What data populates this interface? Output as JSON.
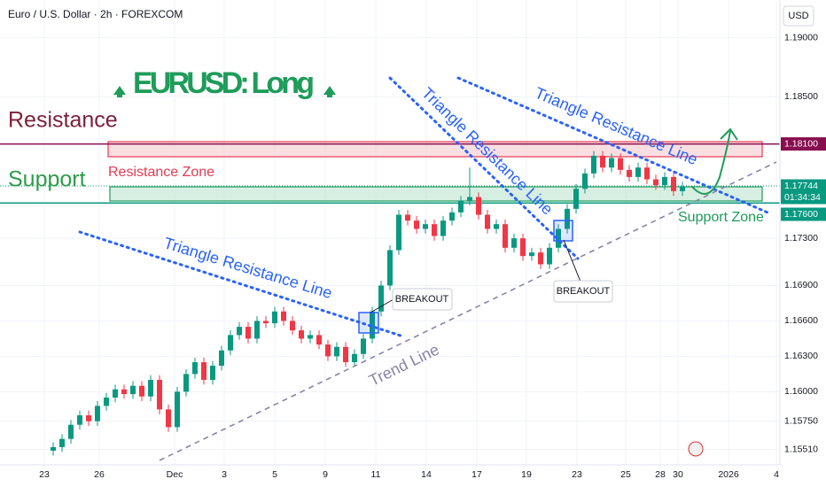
{
  "chart_data": {
    "type": "candlestick",
    "title": "Euro / U.S. Dollar · 2h · FOREXCOM",
    "currency": "USD",
    "headline": "EURUSD: Long",
    "annotations": {
      "resistance": "Resistance",
      "support": "Support",
      "resistance_zone": "Resistance Zone",
      "support_zone": "Support Zone",
      "triangle_lines": [
        "Triangle Resistance Line",
        "Triangle Resistance Line",
        "Triangle Resistance Line"
      ],
      "trend_line": "Trend Line",
      "breakouts": [
        "BREAKOUT",
        "BREAKOUT"
      ]
    },
    "up_color": "#089981",
    "down_color": "#f23645",
    "xlim": [
      -6,
      82
    ],
    "ylim": [
      1.1538,
      1.1932
    ],
    "xticks": [
      {
        "value": -1,
        "label": "23"
      },
      {
        "value": 5.2,
        "label": "26"
      },
      {
        "value": 13.7,
        "label": "Dec"
      },
      {
        "value": 19.3,
        "label": "3"
      },
      {
        "value": 25,
        "label": "5"
      },
      {
        "value": 30.7,
        "label": "9"
      },
      {
        "value": 36.4,
        "label": "11"
      },
      {
        "value": 42.1,
        "label": "14"
      },
      {
        "value": 47.8,
        "label": "17"
      },
      {
        "value": 53.4,
        "label": "19"
      },
      {
        "value": 59.1,
        "label": "23"
      },
      {
        "value": 64.6,
        "label": "25"
      },
      {
        "value": 68.5,
        "label": "28"
      },
      {
        "value": 70.5,
        "label": "30"
      },
      {
        "value": 76.2,
        "label": "2026"
      },
      {
        "value": 81.6,
        "label": "4"
      }
    ],
    "yticks": [
      {
        "value": 1.19,
        "label": "1.19000"
      },
      {
        "value": 1.185,
        "label": "1.18500"
      },
      {
        "value": 1.173,
        "label": "1.17300"
      },
      {
        "value": 1.169,
        "label": "1.16900"
      },
      {
        "value": 1.166,
        "label": "1.16600"
      },
      {
        "value": 1.163,
        "label": "1.16300"
      },
      {
        "value": 1.16,
        "label": "1.16000"
      },
      {
        "value": 1.1575,
        "label": "1.15750"
      },
      {
        "value": 1.1551,
        "label": "1.15510"
      }
    ],
    "price_labels": [
      {
        "value": 1.181,
        "label": "1.18100",
        "color": "#880e4f"
      },
      {
        "value": 1.17744,
        "label": "1.17744",
        "color": "#089981"
      },
      {
        "value": 1.176,
        "label": "1.17600",
        "color": "#089981"
      }
    ],
    "countdown": "01:34:34",
    "grid": true,
    "open": [
      1.155,
      1.1553,
      1.156,
      1.1572,
      1.158,
      1.1575,
      1.1588,
      1.1595,
      1.1602,
      1.1598,
      1.1605,
      1.1596,
      1.161,
      1.1585,
      1.157,
      1.16,
      1.1615,
      1.1625,
      1.161,
      1.1622,
      1.1635,
      1.1648,
      1.1655,
      1.1645,
      1.166,
      1.1658,
      1.1668,
      1.166,
      1.1652,
      1.1645,
      1.1648,
      1.164,
      1.163,
      1.1638,
      1.1625,
      1.1632,
      1.1645,
      1.1668,
      1.169,
      1.172,
      1.175,
      1.1745,
      1.1738,
      1.1742,
      1.1732,
      1.1745,
      1.1752,
      1.1762,
      1.1765,
      1.175,
      1.1738,
      1.1742,
      1.1722,
      1.173,
      1.1715,
      1.1718,
      1.1708,
      1.1722,
      1.1738,
      1.1755,
      1.1772,
      1.1785,
      1.18,
      1.179,
      1.1798,
      1.1788,
      1.1782,
      1.179,
      1.178,
      1.1775,
      1.1782,
      1.177
    ],
    "high": [
      1.1557,
      1.1564,
      1.1576,
      1.1584,
      1.1584,
      1.1592,
      1.1599,
      1.1606,
      1.1606,
      1.1609,
      1.1609,
      1.1614,
      1.1614,
      1.1589,
      1.1604,
      1.1619,
      1.1629,
      1.1629,
      1.1626,
      1.1639,
      1.1652,
      1.1659,
      1.1659,
      1.1664,
      1.1664,
      1.1672,
      1.1672,
      1.1664,
      1.1656,
      1.1652,
      1.1652,
      1.1644,
      1.1642,
      1.1642,
      1.1636,
      1.1649,
      1.1672,
      1.1694,
      1.1724,
      1.1754,
      1.1754,
      1.1749,
      1.1746,
      1.1746,
      1.1749,
      1.1756,
      1.1766,
      1.179,
      1.1769,
      1.1754,
      1.1746,
      1.1746,
      1.1734,
      1.1734,
      1.1722,
      1.1722,
      1.1726,
      1.1742,
      1.1759,
      1.1776,
      1.1789,
      1.1804,
      1.1804,
      1.1802,
      1.1802,
      1.1792,
      1.1794,
      1.1794,
      1.1784,
      1.1786,
      1.1786,
      1.1778
    ],
    "low": [
      1.1546,
      1.1549,
      1.1556,
      1.1568,
      1.1571,
      1.1571,
      1.1584,
      1.1591,
      1.1594,
      1.1594,
      1.1592,
      1.1592,
      1.1581,
      1.1566,
      1.1566,
      1.1596,
      1.1611,
      1.1606,
      1.1606,
      1.1618,
      1.1631,
      1.1644,
      1.1641,
      1.1641,
      1.1654,
      1.1654,
      1.1656,
      1.1648,
      1.1641,
      1.1641,
      1.1636,
      1.1626,
      1.1626,
      1.1621,
      1.1621,
      1.1628,
      1.1641,
      1.1664,
      1.1686,
      1.1716,
      1.1741,
      1.1734,
      1.1734,
      1.1728,
      1.1728,
      1.1741,
      1.1748,
      1.1758,
      1.1746,
      1.1734,
      1.1734,
      1.1718,
      1.1718,
      1.1711,
      1.1711,
      1.1704,
      1.1704,
      1.1718,
      1.1734,
      1.1751,
      1.1768,
      1.1781,
      1.1786,
      1.1786,
      1.1784,
      1.1778,
      1.1778,
      1.1776,
      1.1771,
      1.1771,
      1.1766,
      1.1766
    ],
    "close": [
      1.1553,
      1.156,
      1.1572,
      1.158,
      1.1575,
      1.1588,
      1.1595,
      1.1602,
      1.1598,
      1.1605,
      1.1596,
      1.161,
      1.1585,
      1.157,
      1.16,
      1.1615,
      1.1625,
      1.161,
      1.1622,
      1.1635,
      1.1648,
      1.1655,
      1.1645,
      1.166,
      1.1658,
      1.1668,
      1.166,
      1.1652,
      1.1645,
      1.1648,
      1.164,
      1.163,
      1.1638,
      1.1625,
      1.1632,
      1.1645,
      1.1668,
      1.169,
      1.172,
      1.175,
      1.1745,
      1.1738,
      1.1742,
      1.1732,
      1.1745,
      1.1752,
      1.1762,
      1.1765,
      1.175,
      1.1738,
      1.1742,
      1.1722,
      1.173,
      1.1715,
      1.1718,
      1.1708,
      1.1722,
      1.1738,
      1.1755,
      1.1772,
      1.1785,
      1.18,
      1.179,
      1.1798,
      1.1788,
      1.1782,
      1.179,
      1.178,
      1.1775,
      1.1782,
      1.177,
      1.1774
    ]
  }
}
